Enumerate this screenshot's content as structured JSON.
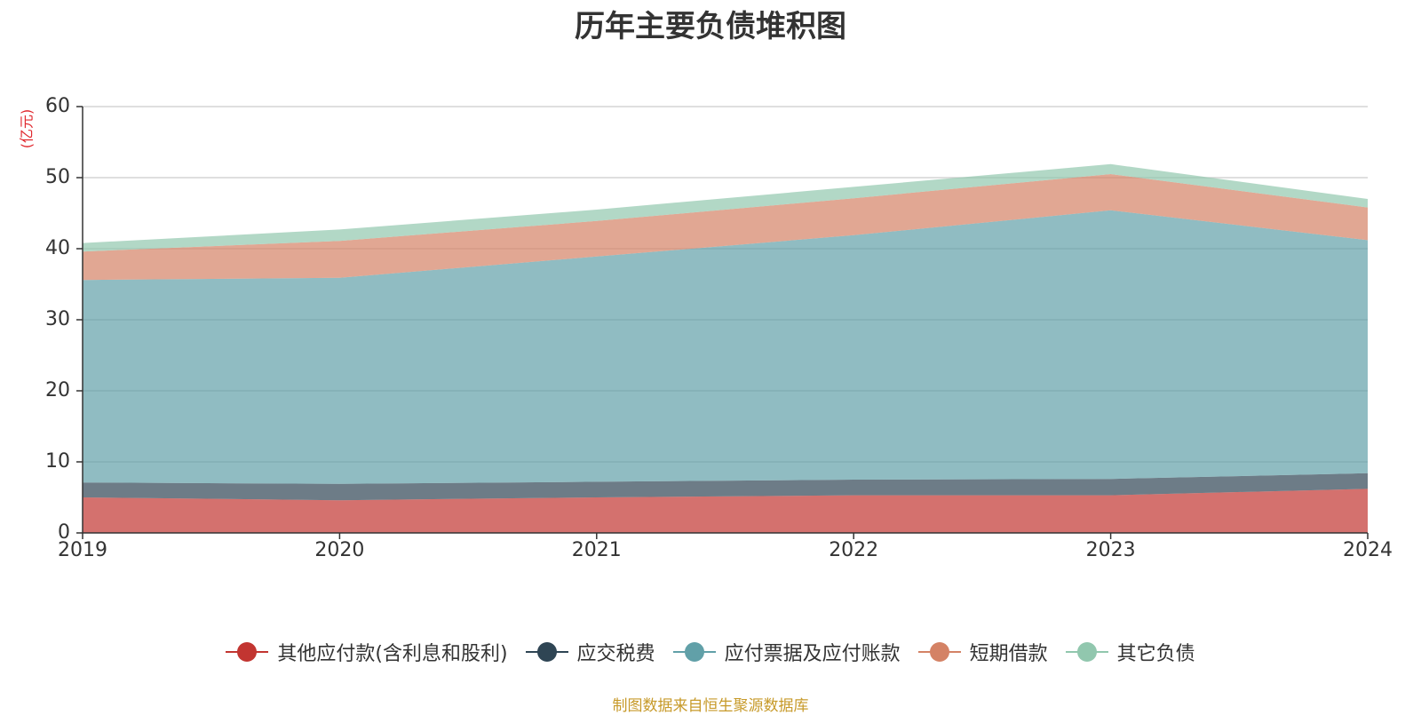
{
  "chart_data": {
    "type": "area",
    "stacked": true,
    "title": "历年主要负债堆积图",
    "ylabel": "(亿元)",
    "xlabel": "",
    "x": [
      "2019",
      "2020",
      "2021",
      "2022",
      "2023",
      "2024"
    ],
    "ylim": [
      0,
      60
    ],
    "yticks": [
      0,
      10,
      20,
      30,
      40,
      50,
      60
    ],
    "grid": true,
    "legend_position": "bottom",
    "series": [
      {
        "name": "其他应付款(含利息和股利)",
        "color": "#c23531",
        "values": [
          5.0,
          4.6,
          5.0,
          5.3,
          5.3,
          6.2
        ]
      },
      {
        "name": "应交税费",
        "color": "#2f4554",
        "values": [
          2.1,
          2.3,
          2.2,
          2.2,
          2.3,
          2.2
        ]
      },
      {
        "name": "应付票据及应付账款",
        "color": "#61a0a8",
        "values": [
          28.5,
          29.0,
          31.7,
          34.4,
          37.8,
          32.8
        ]
      },
      {
        "name": "短期借款",
        "color": "#d48265",
        "values": [
          4.0,
          5.2,
          5.0,
          5.2,
          5.1,
          4.6
        ]
      },
      {
        "name": "其它负债",
        "color": "#91c7ae",
        "values": [
          1.2,
          1.6,
          1.6,
          1.6,
          1.4,
          1.2
        ]
      }
    ]
  },
  "source_note": "制图数据来自恒生聚源数据库"
}
